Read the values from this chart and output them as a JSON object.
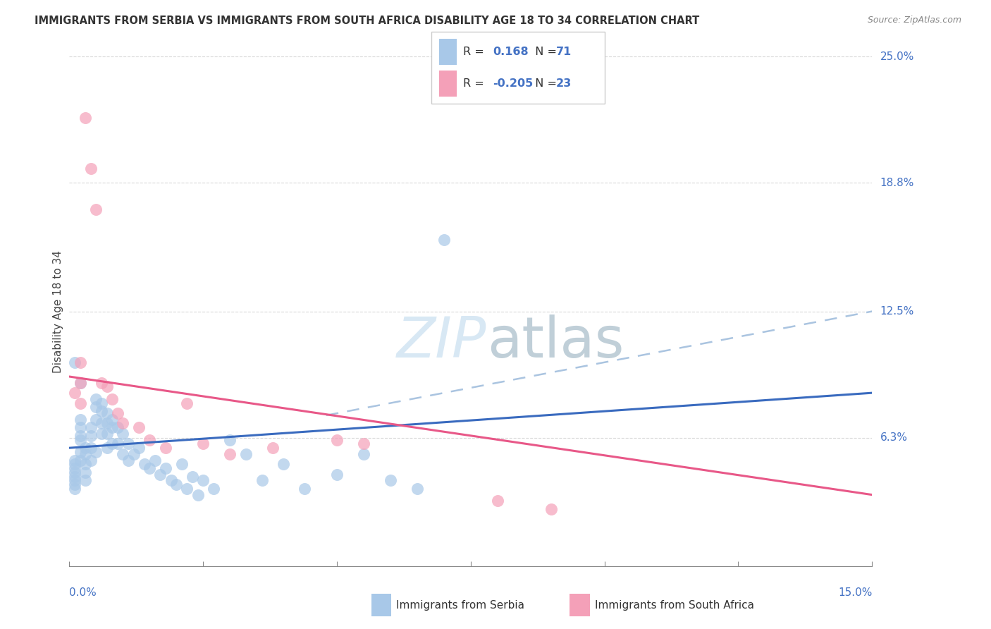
{
  "title": "IMMIGRANTS FROM SERBIA VS IMMIGRANTS FROM SOUTH AFRICA DISABILITY AGE 18 TO 34 CORRELATION CHART",
  "source": "Source: ZipAtlas.com",
  "ylabel": "Disability Age 18 to 34",
  "xlim": [
    0.0,
    0.15
  ],
  "ylim": [
    0.0,
    0.25
  ],
  "serbia_color": "#a8c8e8",
  "southafrica_color": "#f4a0b8",
  "serbia_line_color": "#3a6bbf",
  "southafrica_line_color": "#e85888",
  "dash_color": "#aac4e0",
  "watermark_color": "#d8e8f4",
  "right_label_color": "#4472c4",
  "grid_color": "#d8d8d8",
  "serbia_R": 0.168,
  "serbia_N": 71,
  "southafrica_R": -0.205,
  "southafrica_N": 23,
  "serbia_trend": [
    0.0,
    0.15,
    0.058,
    0.085
  ],
  "southafrica_trend": [
    0.0,
    0.15,
    0.093,
    0.035
  ],
  "dash_trend": [
    0.048,
    0.15,
    0.074,
    0.125
  ],
  "serbia_x": [
    0.001,
    0.001,
    0.001,
    0.001,
    0.001,
    0.001,
    0.001,
    0.001,
    0.002,
    0.002,
    0.002,
    0.002,
    0.002,
    0.002,
    0.003,
    0.003,
    0.003,
    0.003,
    0.003,
    0.004,
    0.004,
    0.004,
    0.004,
    0.005,
    0.005,
    0.005,
    0.005,
    0.006,
    0.006,
    0.006,
    0.006,
    0.007,
    0.007,
    0.007,
    0.007,
    0.008,
    0.008,
    0.008,
    0.009,
    0.009,
    0.01,
    0.01,
    0.011,
    0.011,
    0.012,
    0.013,
    0.014,
    0.015,
    0.016,
    0.017,
    0.018,
    0.019,
    0.02,
    0.021,
    0.022,
    0.023,
    0.024,
    0.025,
    0.027,
    0.03,
    0.033,
    0.036,
    0.04,
    0.044,
    0.05,
    0.055,
    0.06,
    0.065,
    0.07,
    0.001,
    0.002
  ],
  "serbia_y": [
    0.05,
    0.052,
    0.048,
    0.046,
    0.044,
    0.042,
    0.04,
    0.038,
    0.072,
    0.068,
    0.064,
    0.062,
    0.056,
    0.052,
    0.058,
    0.055,
    0.05,
    0.046,
    0.042,
    0.068,
    0.064,
    0.058,
    0.052,
    0.082,
    0.078,
    0.072,
    0.056,
    0.08,
    0.076,
    0.07,
    0.065,
    0.075,
    0.07,
    0.065,
    0.058,
    0.072,
    0.068,
    0.06,
    0.068,
    0.06,
    0.065,
    0.055,
    0.06,
    0.052,
    0.055,
    0.058,
    0.05,
    0.048,
    0.052,
    0.045,
    0.048,
    0.042,
    0.04,
    0.05,
    0.038,
    0.044,
    0.035,
    0.042,
    0.038,
    0.062,
    0.055,
    0.042,
    0.05,
    0.038,
    0.045,
    0.055,
    0.042,
    0.038,
    0.16,
    0.1,
    0.09
  ],
  "southafrica_x": [
    0.001,
    0.002,
    0.002,
    0.002,
    0.003,
    0.004,
    0.005,
    0.006,
    0.007,
    0.008,
    0.009,
    0.01,
    0.013,
    0.015,
    0.018,
    0.022,
    0.025,
    0.03,
    0.038,
    0.05,
    0.055,
    0.08,
    0.09
  ],
  "southafrica_y": [
    0.085,
    0.1,
    0.09,
    0.08,
    0.22,
    0.195,
    0.175,
    0.09,
    0.088,
    0.082,
    0.075,
    0.07,
    0.068,
    0.062,
    0.058,
    0.08,
    0.06,
    0.055,
    0.058,
    0.062,
    0.06,
    0.032,
    0.028
  ]
}
